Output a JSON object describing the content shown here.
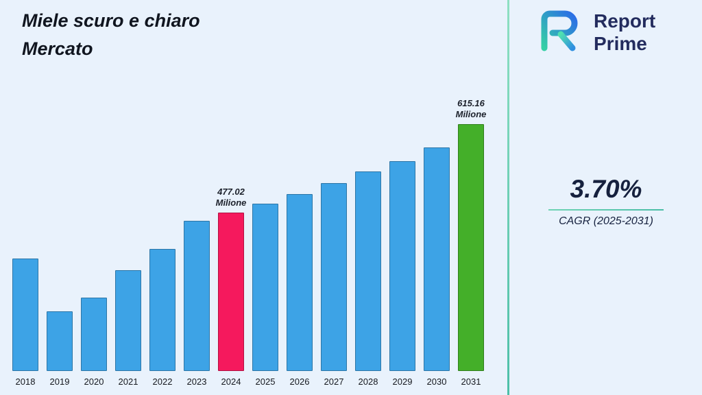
{
  "title": {
    "line1": "Miele scuro e chiaro",
    "line2": "Mercato"
  },
  "logo": {
    "line1": "Report",
    "line2": "Prime"
  },
  "stats": {
    "cagr_value": "3.70%",
    "cagr_label": "CAGR (2025-2031)"
  },
  "chart_data": {
    "type": "bar",
    "title": "Miele scuro e chiaro Mercato",
    "xlabel": "",
    "ylabel": "Milione",
    "categories": [
      "2018",
      "2019",
      "2020",
      "2021",
      "2022",
      "2023",
      "2024",
      "2025",
      "2026",
      "2027",
      "2028",
      "2029",
      "2030",
      "2031"
    ],
    "values": [
      405,
      323,
      344,
      387,
      420,
      464,
      477.02,
      491,
      506,
      523,
      541,
      557,
      579,
      615.16
    ],
    "ylim": [
      230,
      630
    ],
    "grid": false,
    "legend": false,
    "annotations": [
      {
        "index": 6,
        "text": "477.02\nMilione"
      },
      {
        "index": 13,
        "text": "615.16\nMilione"
      }
    ],
    "colors": {
      "default": "#3da3e6",
      "overrides": {
        "6": "#f5195d",
        "13": "#44af29"
      }
    }
  }
}
